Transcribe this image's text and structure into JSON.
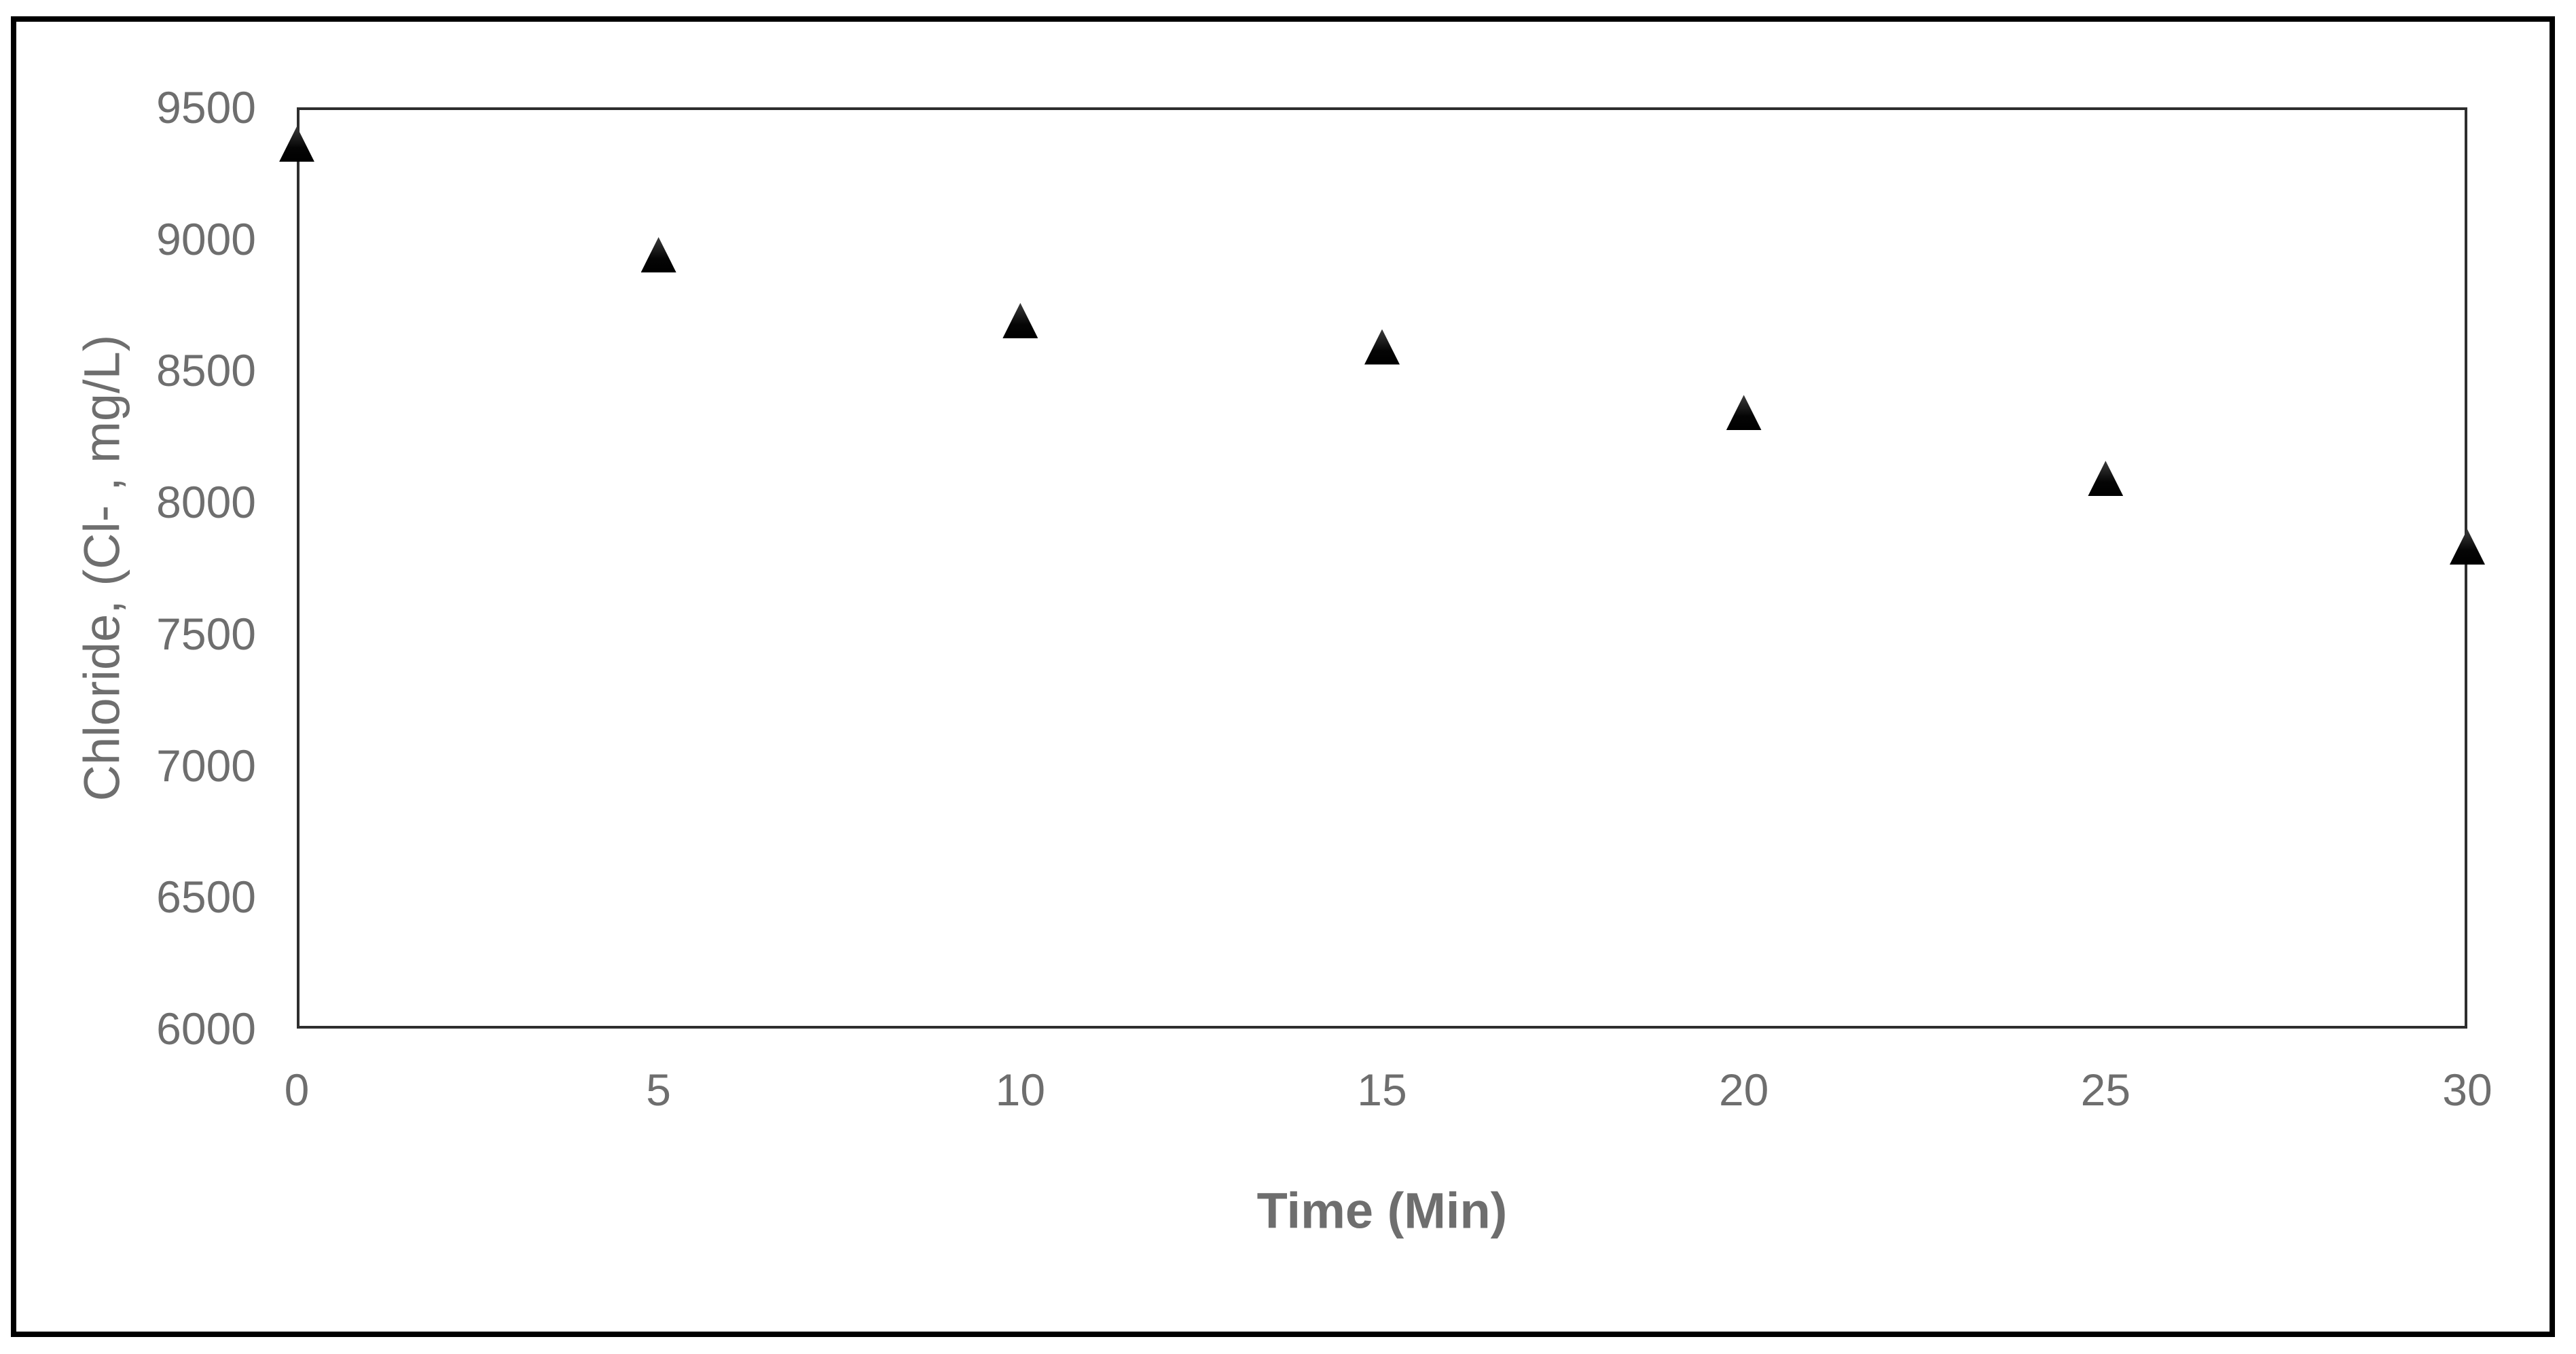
{
  "chart_data": {
    "type": "scatter",
    "title": "",
    "xlabel": "Time (Min)",
    "ylabel": "Chloride, (Cl- , mg/L)",
    "xlim": [
      0,
      30
    ],
    "ylim": [
      6000,
      9500
    ],
    "xticks": [
      0,
      5,
      10,
      15,
      20,
      25,
      30
    ],
    "yticks": [
      9500,
      9000,
      8500,
      8000,
      7500,
      7000,
      6500,
      6000
    ],
    "grid": false,
    "legend": false,
    "series": [
      {
        "marker": "filled-triangle-up-icon",
        "marker_color": "#000000",
        "x": [
          0,
          5,
          10,
          15,
          20,
          25,
          30
        ],
        "y": [
          9360,
          8940,
          8690,
          8590,
          8340,
          8090,
          7830
        ]
      }
    ]
  },
  "colors": {
    "outer_frame": "#000000",
    "plot_border": "#2e2e2e",
    "tick_label": "#6e6e6e",
    "axis_title": "#6e6e6e",
    "marker": "#000000",
    "background": "#ffffff"
  }
}
